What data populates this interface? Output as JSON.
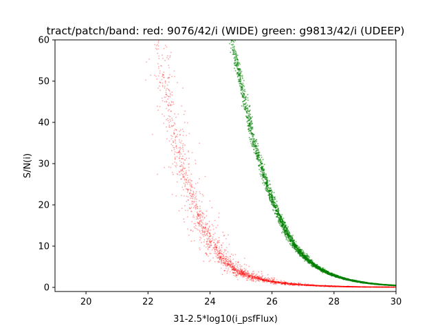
{
  "chart_data": {
    "type": "scatter",
    "title": "tract/patch/band: red: 9076/42/i (WIDE) green: g9813/42/i (UDEEP)",
    "xlabel": "31-2.5*log10(i_psfFlux)",
    "ylabel": "S/N(i)",
    "xlim": [
      19,
      30
    ],
    "ylim": [
      -1,
      60
    ],
    "xticks": [
      "20",
      "22",
      "24",
      "26",
      "28",
      "30"
    ],
    "yticks": [
      "0",
      "10",
      "20",
      "30",
      "40",
      "50",
      "60"
    ],
    "grid": false,
    "series": [
      {
        "color": "#ff0000",
        "curve_mag": [
          22.3,
          22.5,
          22.7,
          22.9,
          23.1,
          23.3,
          23.5,
          23.7,
          23.9,
          24.1,
          24.3,
          24.5,
          24.8,
          25.0,
          25.5,
          26.0,
          26.5,
          27.0,
          27.5,
          28.0,
          28.5,
          29.0,
          29.5,
          30.0
        ],
        "curve_sn": [
          60,
          52,
          43,
          36,
          30,
          24.5,
          20,
          16,
          13,
          10.2,
          8,
          6.3,
          4.5,
          3.6,
          2.2,
          1.4,
          0.9,
          0.6,
          0.4,
          0.25,
          0.15,
          0.1,
          0.07,
          0.05
        ]
      },
      {
        "color": "#008000",
        "curve_mag": [
          24.7,
          24.9,
          25.1,
          25.3,
          25.5,
          25.7,
          25.9,
          26.1,
          26.3,
          26.5,
          26.7,
          26.9,
          27.2,
          27.5,
          27.8,
          28.1,
          28.5,
          29.0,
          29.5,
          30.0
        ],
        "curve_sn": [
          60,
          53,
          46,
          39,
          33,
          28,
          23.5,
          19.5,
          16,
          13,
          10.5,
          8.5,
          6.3,
          4.7,
          3.5,
          2.6,
          1.8,
          1.1,
          0.7,
          0.45
        ]
      }
    ]
  }
}
